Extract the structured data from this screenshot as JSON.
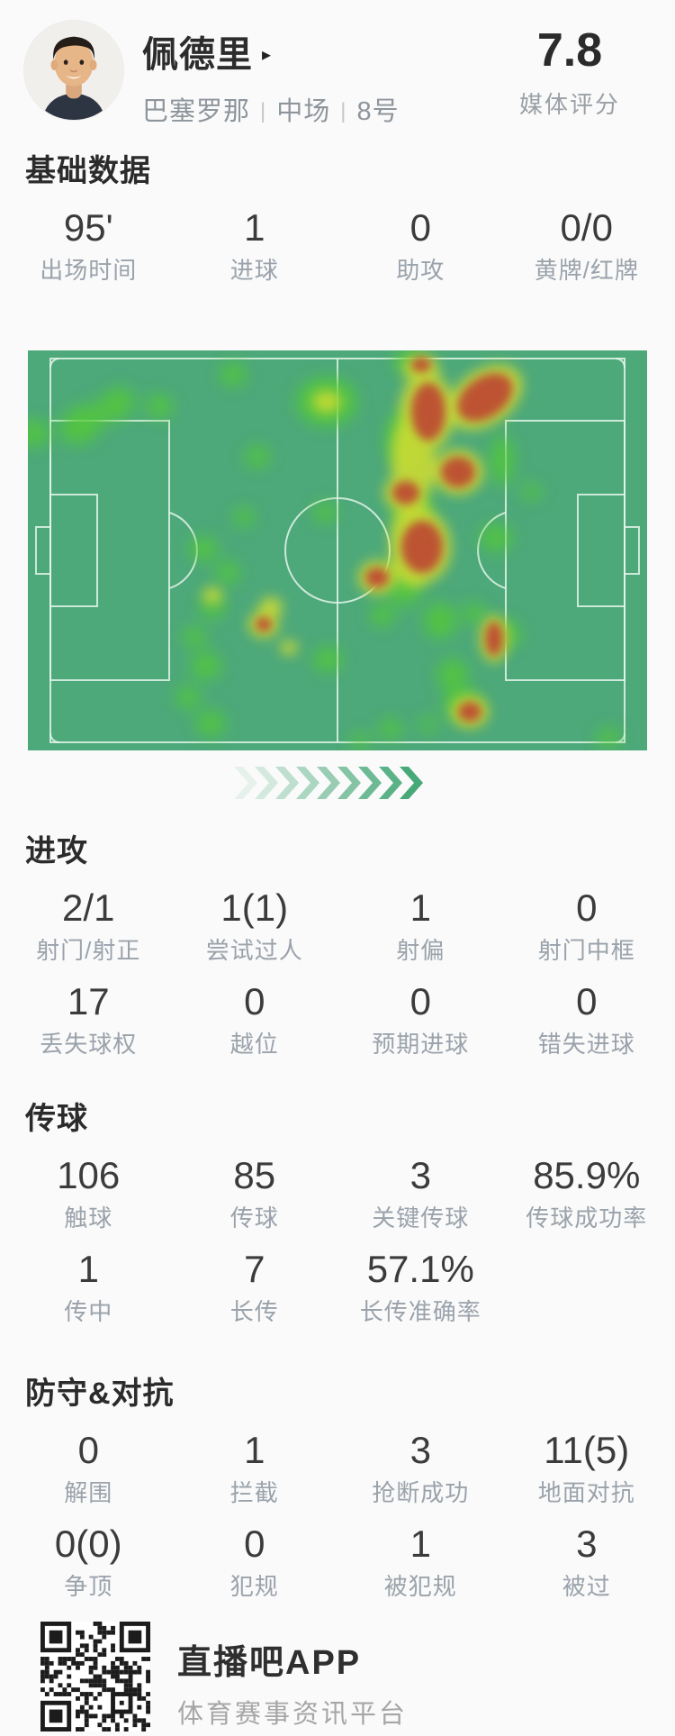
{
  "header": {
    "player_name": "佩德里",
    "caret": "▸",
    "meta": [
      "巴塞罗那",
      "中场",
      "8号"
    ],
    "meta_separator": "|",
    "rating_value": "7.8",
    "rating_label": "媒体评分"
  },
  "sections": {
    "basic": {
      "title": "基础数据",
      "rows": [
        [
          {
            "v": "95'",
            "l": "出场时间"
          },
          {
            "v": "1",
            "l": "进球"
          },
          {
            "v": "0",
            "l": "助攻"
          },
          {
            "v": "0/0",
            "l": "黄牌/红牌"
          }
        ]
      ]
    },
    "attack": {
      "title": "进攻",
      "rows": [
        [
          {
            "v": "2/1",
            "l": "射门/射正"
          },
          {
            "v": "1(1)",
            "l": "尝试过人"
          },
          {
            "v": "1",
            "l": "射偏"
          },
          {
            "v": "0",
            "l": "射门中框"
          }
        ],
        [
          {
            "v": "17",
            "l": "丢失球权"
          },
          {
            "v": "0",
            "l": "越位"
          },
          {
            "v": "0",
            "l": "预期进球"
          },
          {
            "v": "0",
            "l": "错失进球"
          }
        ]
      ]
    },
    "passing": {
      "title": "传球",
      "rows": [
        [
          {
            "v": "106",
            "l": "触球"
          },
          {
            "v": "85",
            "l": "传球"
          },
          {
            "v": "3",
            "l": "关键传球"
          },
          {
            "v": "85.9%",
            "l": "传球成功率"
          }
        ],
        [
          {
            "v": "1",
            "l": "传中"
          },
          {
            "v": "7",
            "l": "长传"
          },
          {
            "v": "57.1%",
            "l": "长传准确率"
          }
        ]
      ]
    },
    "defense": {
      "title": "防守&对抗",
      "rows": [
        [
          {
            "v": "0",
            "l": "解围"
          },
          {
            "v": "1",
            "l": "拦截"
          },
          {
            "v": "3",
            "l": "抢断成功"
          },
          {
            "v": "11(5)",
            "l": "地面对抗"
          }
        ],
        [
          {
            "v": "0(0)",
            "l": "争顶"
          },
          {
            "v": "0",
            "l": "犯规"
          },
          {
            "v": "1",
            "l": "被犯规"
          },
          {
            "v": "3",
            "l": "被过"
          }
        ]
      ]
    }
  },
  "heatmap": {
    "pitch_color": "#4da87a",
    "line_color": "#e3f5ea",
    "heat_colors": {
      "green": "#52cb36",
      "yellow": "#d3dd33",
      "red": "#bd4a31"
    },
    "blobs": {
      "green": [
        [
          60,
          82,
          26,
          20,
          -35
        ],
        [
          98,
          60,
          22,
          17,
          -35
        ],
        [
          6,
          92,
          18,
          15,
          0
        ],
        [
          146,
          62,
          15,
          13,
          0
        ],
        [
          228,
          27,
          15,
          13,
          0
        ],
        [
          332,
          57,
          34,
          27,
          0
        ],
        [
          255,
          118,
          14,
          12,
          0
        ],
        [
          330,
          180,
          13,
          11,
          0
        ],
        [
          240,
          185,
          12,
          10,
          0
        ],
        [
          195,
          220,
          16,
          13,
          0
        ],
        [
          222,
          247,
          14,
          12,
          0
        ],
        [
          205,
          285,
          14,
          12,
          0
        ],
        [
          185,
          318,
          13,
          11,
          0
        ],
        [
          198,
          350,
          17,
          15,
          0
        ],
        [
          178,
          385,
          14,
          12,
          0
        ],
        [
          203,
          414,
          17,
          14,
          0
        ],
        [
          424,
          12,
          18,
          13,
          0
        ],
        [
          420,
          100,
          22,
          34,
          0
        ],
        [
          428,
          180,
          20,
          30,
          0
        ],
        [
          418,
          258,
          20,
          26,
          0
        ],
        [
          458,
          300,
          18,
          20,
          0
        ],
        [
          472,
          360,
          17,
          18,
          0
        ],
        [
          482,
          392,
          20,
          17,
          0
        ],
        [
          527,
          122,
          13,
          28,
          0
        ],
        [
          560,
          157,
          11,
          9,
          0
        ],
        [
          520,
          208,
          18,
          15,
          0
        ],
        [
          496,
          292,
          13,
          11,
          0
        ],
        [
          532,
          315,
          16,
          14,
          0
        ],
        [
          333,
          343,
          16,
          14,
          0
        ],
        [
          394,
          294,
          14,
          12,
          0
        ],
        [
          403,
          420,
          13,
          11,
          0
        ],
        [
          369,
          434,
          11,
          9,
          0
        ],
        [
          445,
          415,
          10,
          9,
          0
        ],
        [
          645,
          430,
          13,
          11,
          0
        ]
      ],
      "yellow": [
        [
          332,
          57,
          16,
          12,
          0
        ],
        [
          437,
          20,
          20,
          15,
          0
        ],
        [
          443,
          68,
          30,
          44,
          0
        ],
        [
          508,
          52,
          46,
          30,
          -35
        ],
        [
          478,
          135,
          28,
          25,
          0
        ],
        [
          420,
          158,
          24,
          21,
          0
        ],
        [
          428,
          120,
          24,
          55,
          0
        ],
        [
          430,
          215,
          28,
          48,
          0
        ],
        [
          438,
          218,
          32,
          40,
          0
        ],
        [
          388,
          252,
          21,
          19,
          0
        ],
        [
          262,
          304,
          17,
          15,
          0
        ],
        [
          270,
          285,
          13,
          11,
          0
        ],
        [
          205,
          272,
          11,
          9,
          0
        ],
        [
          518,
          320,
          16,
          26,
          0
        ],
        [
          491,
          401,
          21,
          18,
          0
        ],
        [
          290,
          330,
          10,
          8,
          0
        ]
      ],
      "red": [
        [
          445,
          68,
          19,
          32,
          0
        ],
        [
          508,
          52,
          34,
          22,
          -35
        ],
        [
          478,
          135,
          19,
          17,
          0
        ],
        [
          420,
          158,
          15,
          13,
          0
        ],
        [
          438,
          218,
          23,
          29,
          0
        ],
        [
          388,
          252,
          13,
          11,
          0
        ],
        [
          262,
          304,
          9,
          8,
          0
        ],
        [
          518,
          320,
          10,
          19,
          0
        ],
        [
          491,
          401,
          13,
          11,
          0
        ],
        [
          437,
          16,
          11,
          8,
          0
        ]
      ]
    }
  },
  "chevrons": {
    "count": 9,
    "color": "#47a878"
  },
  "footer": {
    "app_name": "直播吧APP",
    "tagline": "体育赛事资讯平台"
  }
}
